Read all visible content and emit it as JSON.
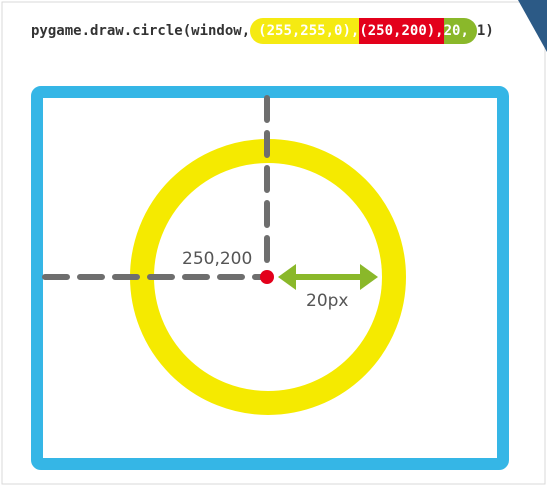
{
  "code": {
    "prefix": "pygame.draw.circle(window,",
    "color_arg": "(255,255,0),",
    "position_arg": "(250,200),",
    "radius_arg": "20,",
    "suffix": "1)"
  },
  "diagram": {
    "center_label": "250,200",
    "radius_label": "20px"
  },
  "colors": {
    "window_border": "#35b6e6",
    "circle": "#f5ea00",
    "center_point": "#e3001b",
    "radius_arrow": "#8ab82a",
    "guide_lines": "#6e6e6e"
  }
}
